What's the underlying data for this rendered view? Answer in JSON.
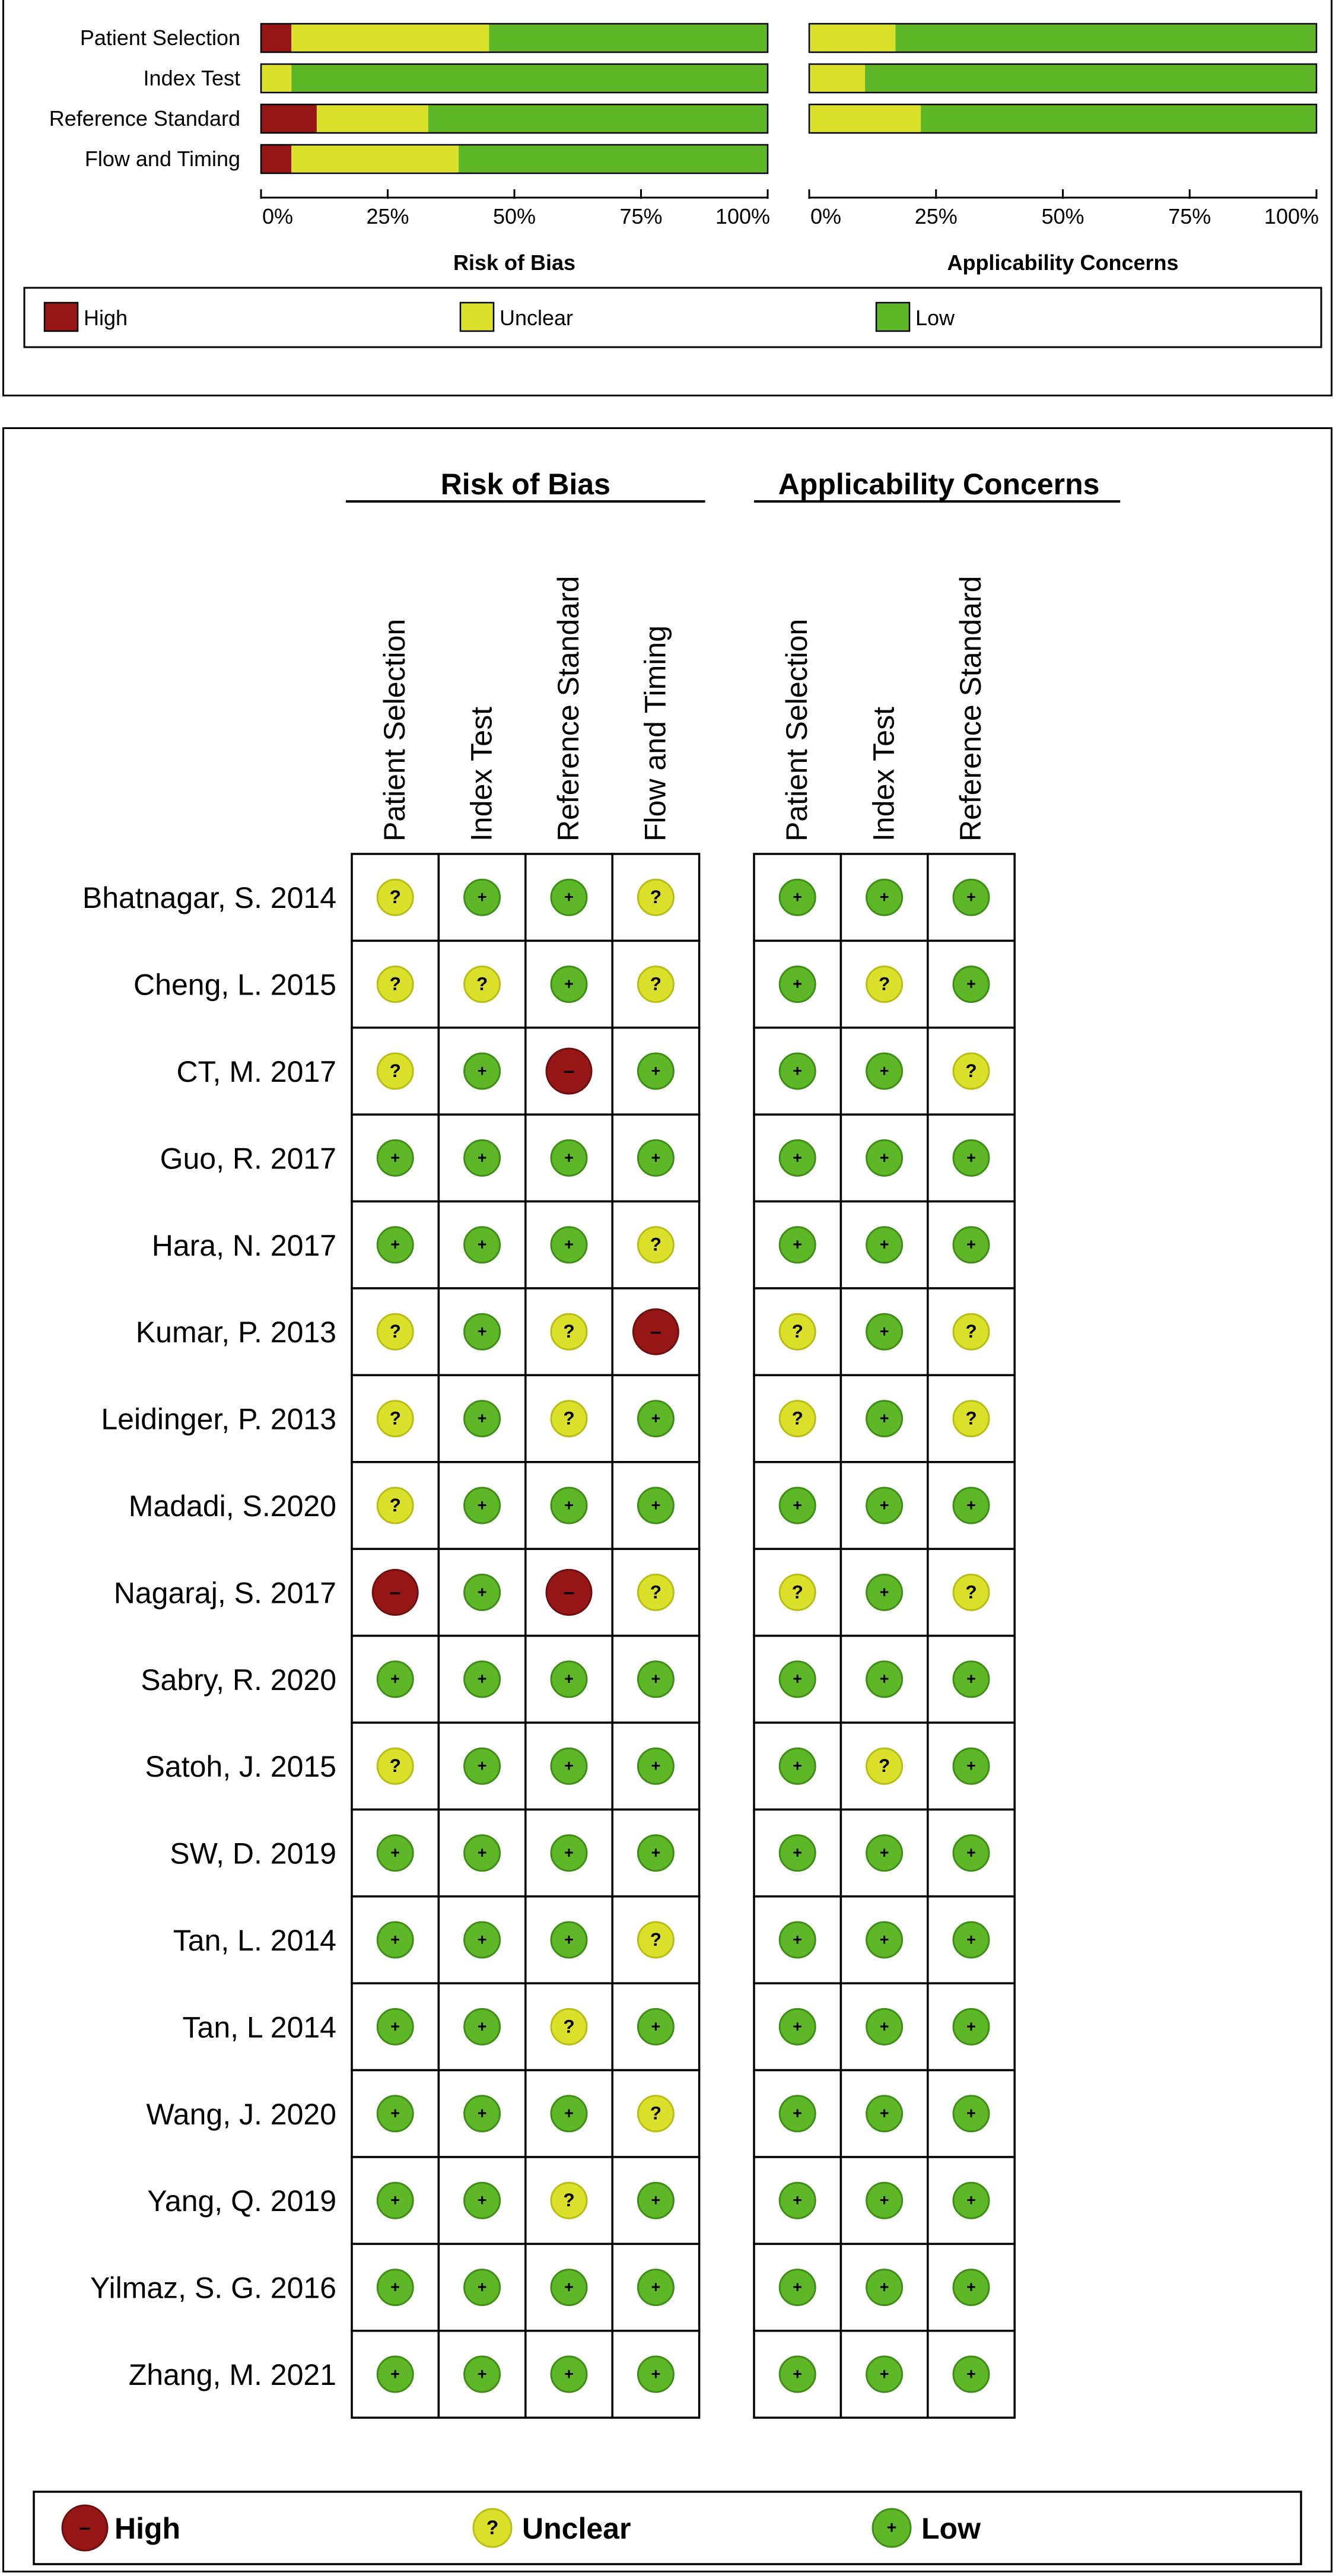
{
  "chart_data": [
    {
      "type": "bar",
      "orientation": "horizontal-stacked-percent",
      "categories": [
        "Patient Selection",
        "Index Test",
        "Reference Standard",
        "Flow and Timing"
      ],
      "panels": [
        {
          "title": "Risk of Bias",
          "series": [
            {
              "name": "High",
              "values": [
                6,
                0,
                11,
                6
              ]
            },
            {
              "name": "Unclear",
              "values": [
                39,
                6,
                22,
                33
              ]
            },
            {
              "name": "Low",
              "values": [
                55,
                94,
                67,
                61
              ]
            }
          ]
        },
        {
          "title": "Applicability Concerns",
          "categories": [
            "Patient Selection",
            "Index Test",
            "Reference Standard"
          ],
          "series": [
            {
              "name": "High",
              "values": [
                0,
                0,
                0
              ]
            },
            {
              "name": "Unclear",
              "values": [
                17,
                11,
                22
              ]
            },
            {
              "name": "Low",
              "values": [
                83,
                89,
                78
              ]
            }
          ]
        }
      ],
      "xticks": [
        "0%",
        "25%",
        "50%",
        "75%",
        "100%"
      ],
      "xlim": [
        0,
        100
      ],
      "legend": [
        "High",
        "Unclear",
        "Low"
      ],
      "legend_placement": "bottom"
    },
    {
      "type": "table",
      "group_headers": [
        "Risk of Bias",
        "Applicability Concerns"
      ],
      "rob_columns": [
        "Patient Selection",
        "Index Test",
        "Reference Standard",
        "Flow and Timing"
      ],
      "ac_columns": [
        "Patient Selection",
        "Index Test",
        "Reference Standard"
      ],
      "rows": [
        {
          "study": "Bhatnagar, S. 2014",
          "rob": [
            "U",
            "L",
            "L",
            "U"
          ],
          "ac": [
            "L",
            "L",
            "L"
          ]
        },
        {
          "study": "Cheng, L. 2015",
          "rob": [
            "U",
            "U",
            "L",
            "U"
          ],
          "ac": [
            "L",
            "U",
            "L"
          ]
        },
        {
          "study": "CT, M. 2017",
          "rob": [
            "U",
            "L",
            "H",
            "L"
          ],
          "ac": [
            "L",
            "L",
            "U"
          ]
        },
        {
          "study": "Guo, R. 2017",
          "rob": [
            "L",
            "L",
            "L",
            "L"
          ],
          "ac": [
            "L",
            "L",
            "L"
          ]
        },
        {
          "study": "Hara, N. 2017",
          "rob": [
            "L",
            "L",
            "L",
            "U"
          ],
          "ac": [
            "L",
            "L",
            "L"
          ]
        },
        {
          "study": "Kumar, P. 2013",
          "rob": [
            "U",
            "L",
            "U",
            "H"
          ],
          "ac": [
            "U",
            "L",
            "U"
          ]
        },
        {
          "study": "Leidinger, P. 2013",
          "rob": [
            "U",
            "L",
            "U",
            "L"
          ],
          "ac": [
            "U",
            "L",
            "U"
          ]
        },
        {
          "study": "Madadi, S.2020",
          "rob": [
            "U",
            "L",
            "L",
            "L"
          ],
          "ac": [
            "L",
            "L",
            "L"
          ]
        },
        {
          "study": "Nagaraj, S. 2017",
          "rob": [
            "H",
            "L",
            "H",
            "U"
          ],
          "ac": [
            "U",
            "L",
            "U"
          ]
        },
        {
          "study": "Sabry, R. 2020",
          "rob": [
            "L",
            "L",
            "L",
            "L"
          ],
          "ac": [
            "L",
            "L",
            "L"
          ]
        },
        {
          "study": "Satoh, J. 2015",
          "rob": [
            "U",
            "L",
            "L",
            "L"
          ],
          "ac": [
            "L",
            "U",
            "L"
          ]
        },
        {
          "study": "SW, D. 2019",
          "rob": [
            "L",
            "L",
            "L",
            "L"
          ],
          "ac": [
            "L",
            "L",
            "L"
          ]
        },
        {
          "study": "Tan, L. 2014",
          "rob": [
            "L",
            "L",
            "L",
            "U"
          ],
          "ac": [
            "L",
            "L",
            "L"
          ]
        },
        {
          "study": "Tan, L 2014",
          "rob": [
            "L",
            "L",
            "U",
            "L"
          ],
          "ac": [
            "L",
            "L",
            "L"
          ]
        },
        {
          "study": "Wang, J. 2020",
          "rob": [
            "L",
            "L",
            "L",
            "U"
          ],
          "ac": [
            "L",
            "L",
            "L"
          ]
        },
        {
          "study": "Yang, Q. 2019",
          "rob": [
            "L",
            "L",
            "U",
            "L"
          ],
          "ac": [
            "L",
            "L",
            "L"
          ]
        },
        {
          "study": "Yilmaz, S. G. 2016",
          "rob": [
            "L",
            "L",
            "L",
            "L"
          ],
          "ac": [
            "L",
            "L",
            "L"
          ]
        },
        {
          "study": "Zhang, M. 2021",
          "rob": [
            "L",
            "L",
            "L",
            "L"
          ],
          "ac": [
            "L",
            "L",
            "L"
          ]
        }
      ],
      "symbols": {
        "H": "–",
        "U": "?",
        "L": "+"
      },
      "legend": [
        {
          "key": "H",
          "label": "High"
        },
        {
          "key": "U",
          "label": "Unclear"
        },
        {
          "key": "L",
          "label": "Low"
        }
      ]
    }
  ],
  "colors": {
    "High": "#961616",
    "Unclear": "#dbe02b",
    "Low": "#5db726",
    "LowStroke": "#3f8f16",
    "UnclearStroke": "#b9be14",
    "HighStroke": "#6e0e0e"
  }
}
